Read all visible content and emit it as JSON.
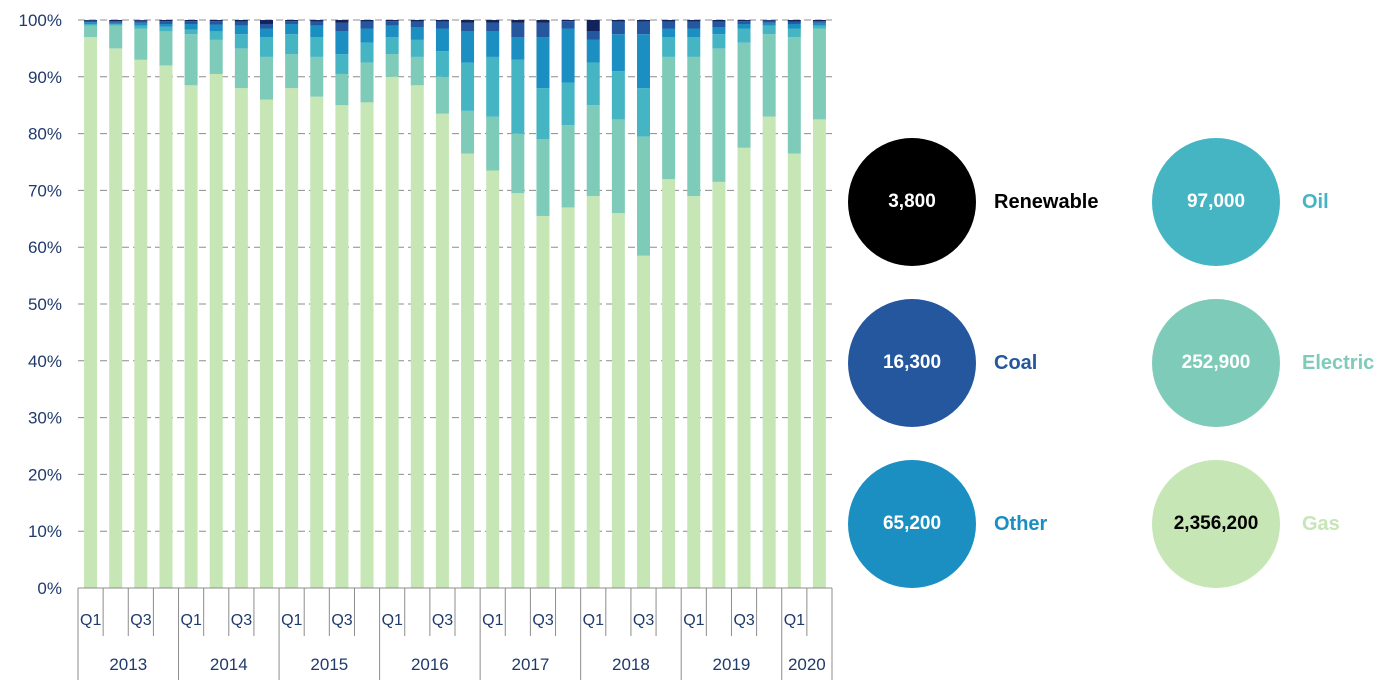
{
  "chart_data": {
    "type": "bar",
    "stacked": true,
    "percent": true,
    "ylim": [
      0,
      100
    ],
    "y_ticks": [
      "0%",
      "10%",
      "20%",
      "30%",
      "40%",
      "50%",
      "60%",
      "70%",
      "80%",
      "90%",
      "100%"
    ],
    "grid": "horizontal dashed",
    "quarter_labels": [
      "Q1",
      "",
      "Q3",
      "",
      "Q1",
      "",
      "Q3",
      "",
      "Q1",
      "",
      "Q3",
      "",
      "Q1",
      "",
      "Q3",
      "",
      "Q1",
      "",
      "Q3",
      "",
      "Q1",
      "",
      "Q3",
      "",
      "Q1",
      "",
      "Q3",
      "",
      "Q1",
      ""
    ],
    "years": [
      {
        "label": "2013",
        "quarters": 4
      },
      {
        "label": "2014",
        "quarters": 4
      },
      {
        "label": "2015",
        "quarters": 4
      },
      {
        "label": "2016",
        "quarters": 4
      },
      {
        "label": "2017",
        "quarters": 4
      },
      {
        "label": "2018",
        "quarters": 4
      },
      {
        "label": "2019",
        "quarters": 4
      },
      {
        "label": "2020",
        "quarters": 2
      }
    ],
    "series": [
      {
        "name": "Gas",
        "color": "#c6e6b6",
        "values": [
          97,
          95,
          93,
          92,
          88.5,
          90.5,
          88,
          86,
          88,
          86.5,
          85,
          85.5,
          90,
          88.5,
          83.5,
          76.5,
          73.5,
          69.5,
          65.5,
          67,
          69,
          66,
          58.5,
          72,
          69,
          71.5,
          77.5,
          83,
          76.5,
          82.5
        ]
      },
      {
        "name": "Electric",
        "color": "#7ecbb9",
        "values": [
          2,
          4,
          5.5,
          6,
          9,
          6,
          7,
          7.5,
          6,
          7,
          5.5,
          7,
          4,
          5,
          6.5,
          7.5,
          9.5,
          10.5,
          13.5,
          14.5,
          16,
          16.5,
          21,
          21.5,
          24.5,
          23.5,
          18.5,
          14.5,
          20.5,
          16
        ]
      },
      {
        "name": "Oil",
        "color": "#45b5c4",
        "values": [
          0.3,
          0.3,
          0.5,
          0.8,
          0.8,
          1.5,
          2.5,
          3.5,
          3.5,
          3.5,
          3.5,
          3.5,
          3,
          3,
          4.5,
          8.5,
          10.5,
          13,
          9,
          7.5,
          7.5,
          8.5,
          8.5,
          3.5,
          3.5,
          2.5,
          2.5,
          1.5,
          1.5,
          0.5
        ]
      },
      {
        "name": "Other",
        "color": "#1b8fc2",
        "values": [
          0.3,
          0.2,
          0.5,
          0.5,
          1,
          1.2,
          1.5,
          1.5,
          1.8,
          2,
          4,
          2.5,
          2,
          2.2,
          4,
          5.5,
          4.5,
          4,
          9,
          9.5,
          4,
          6.5,
          9.5,
          1.5,
          1.5,
          1.2,
          0.8,
          0.5,
          0.8,
          0.5
        ]
      },
      {
        "name": "Coal",
        "color": "#25579e",
        "values": [
          0.3,
          0.3,
          0.4,
          0.5,
          0.5,
          0.6,
          0.7,
          0.8,
          0.5,
          0.7,
          1.5,
          1.2,
          0.8,
          1,
          1.2,
          1.5,
          1.5,
          2.5,
          2.5,
          1.3,
          1.5,
          2.2,
          2.2,
          1.2,
          1.2,
          1,
          0.5,
          0.4,
          0.4,
          0.3
        ]
      },
      {
        "name": "Renewable",
        "color": "#12225b",
        "values": [
          0.1,
          0.2,
          0.1,
          0.2,
          0.2,
          0.2,
          0.3,
          0.7,
          0.2,
          0.3,
          0.5,
          0.3,
          0.2,
          0.3,
          0.3,
          0.5,
          0.5,
          0.5,
          0.5,
          0.2,
          2,
          0.3,
          0.3,
          0.3,
          0.3,
          0.3,
          0.2,
          0.1,
          0.3,
          0.2
        ]
      }
    ]
  },
  "legend": {
    "items": [
      {
        "name": "Renewable",
        "value": "3,800",
        "bubble_color": "#000000",
        "value_color": "#ffffff",
        "name_color": "#000000"
      },
      {
        "name": "Oil",
        "value": "97,000",
        "bubble_color": "#45b5c4",
        "value_color": "#ffffff",
        "name_color": "#45b5c4"
      },
      {
        "name": "Coal",
        "value": "16,300",
        "bubble_color": "#25579e",
        "value_color": "#ffffff",
        "name_color": "#25579e"
      },
      {
        "name": "Electric",
        "value": "252,900",
        "bubble_color": "#7ecbb9",
        "value_color": "#ffffff",
        "name_color": "#7ecbb9"
      },
      {
        "name": "Other",
        "value": "65,200",
        "bubble_color": "#1b8fc2",
        "value_color": "#ffffff",
        "name_color": "#1b8fc2"
      },
      {
        "name": "Gas",
        "value": "2,356,200",
        "bubble_color": "#c6e6b6",
        "value_color": "#000000",
        "name_color": "#c6e6b6"
      }
    ]
  }
}
